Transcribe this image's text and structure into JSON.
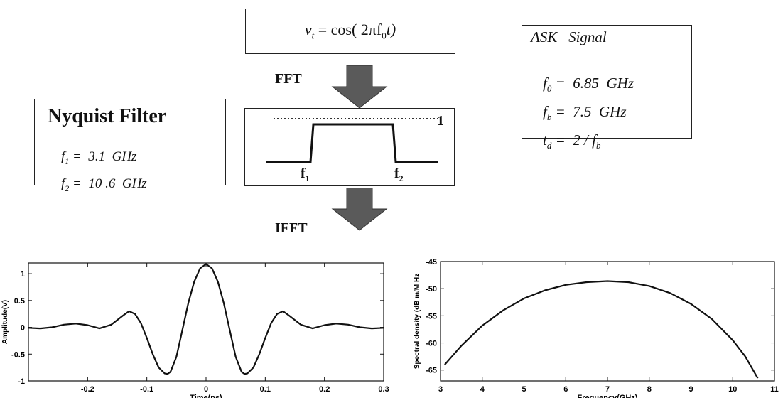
{
  "signal_box": {
    "v": "v",
    "sub": "t",
    "rest": " = cos( 2πf",
    "f0sub": "0",
    "tail": "t)"
  },
  "fft_label": "FFT",
  "ifft_label": "IFFT",
  "ask_box": {
    "title": "ASK   Signal",
    "line1": {
      "sym": "f",
      "sub": "0",
      "val": " =  6.85  GHz"
    },
    "line2": {
      "sym": "f",
      "sub": "b",
      "val": " =  7.5  GHz"
    },
    "line3": {
      "sym": "t",
      "sub": "d",
      "val": " =  2 / f",
      "tsub": "b"
    }
  },
  "nyquist_box": {
    "title": "Nyquist Filter",
    "line1": {
      "sym": "f",
      "sub": "1",
      "val": " =  3.1  GHz"
    },
    "line2": {
      "sym": "f",
      "sub": "2",
      "val": " =  10 .6  GHz"
    }
  },
  "filter_box": {
    "level_label": "1",
    "f1": "f",
    "f1sub": "1",
    "f2": "f",
    "f2sub": "2"
  },
  "colors": {
    "line": "#111111",
    "accent": "#555555"
  },
  "chart_data": [
    {
      "type": "line",
      "title": "",
      "xlabel": "Time(ns)",
      "ylabel": "Amplitude(V)",
      "xlim": [
        -0.3,
        0.3
      ],
      "ylim": [
        -1,
        1.2
      ],
      "xticks": [
        -0.2,
        -0.1,
        0,
        0.1,
        0.2,
        0.3
      ],
      "xtick_labels": [
        "-0.2",
        "-0.1",
        "0",
        "0.1",
        "0.2",
        "0.3"
      ],
      "yticks": [
        -1,
        -0.5,
        0,
        0.5,
        1
      ],
      "ytick_labels": [
        "-1",
        "-0.5",
        "0",
        "0.5",
        "1"
      ],
      "series": [
        {
          "x": [
            -0.3,
            -0.28,
            -0.26,
            -0.24,
            -0.22,
            -0.2,
            -0.18,
            -0.16,
            -0.14,
            -0.13,
            -0.12,
            -0.11,
            -0.1,
            -0.09,
            -0.08,
            -0.07,
            -0.065,
            -0.06,
            -0.05,
            -0.04,
            -0.03,
            -0.02,
            -0.01,
            0,
            0.01,
            0.02,
            0.03,
            0.04,
            0.05,
            0.06,
            0.065,
            0.07,
            0.08,
            0.09,
            0.1,
            0.11,
            0.12,
            0.13,
            0.14,
            0.16,
            0.18,
            0.2,
            0.22,
            0.24,
            0.26,
            0.28,
            0.3
          ],
          "y": [
            -0.01,
            -0.02,
            0.0,
            0.05,
            0.07,
            0.04,
            -0.02,
            0.05,
            0.22,
            0.3,
            0.25,
            0.08,
            -0.2,
            -0.5,
            -0.75,
            -0.86,
            -0.87,
            -0.83,
            -0.55,
            -0.05,
            0.45,
            0.85,
            1.1,
            1.18,
            1.1,
            0.85,
            0.45,
            -0.05,
            -0.55,
            -0.83,
            -0.87,
            -0.86,
            -0.75,
            -0.5,
            -0.2,
            0.08,
            0.25,
            0.3,
            0.22,
            0.05,
            -0.02,
            0.04,
            0.07,
            0.05,
            0.0,
            -0.02,
            -0.01
          ]
        }
      ]
    },
    {
      "type": "line",
      "title": "",
      "xlabel": "Frequency(GHz)",
      "ylabel": "Spectral density (dB m/M Hz",
      "xlim": [
        3,
        11
      ],
      "ylim": [
        -67,
        -45
      ],
      "xticks": [
        3,
        4,
        5,
        6,
        7,
        8,
        9,
        10,
        11
      ],
      "xtick_labels": [
        "3",
        "4",
        "5",
        "6",
        "7",
        "8",
        "9",
        "10",
        "11"
      ],
      "yticks": [
        -65,
        -60,
        -55,
        -50,
        -45
      ],
      "ytick_labels": [
        "-65",
        "-60",
        "-55",
        "-50",
        "-45"
      ],
      "series": [
        {
          "x": [
            3.1,
            3.5,
            4,
            4.5,
            5,
            5.5,
            6,
            6.5,
            7,
            7.5,
            8,
            8.5,
            9,
            9.5,
            10,
            10.3,
            10.6
          ],
          "y": [
            -64,
            -60.5,
            -56.8,
            -54,
            -51.8,
            -50.3,
            -49.3,
            -48.8,
            -48.6,
            -48.8,
            -49.5,
            -50.8,
            -52.8,
            -55.6,
            -59.5,
            -62.5,
            -66.5
          ]
        }
      ]
    }
  ]
}
